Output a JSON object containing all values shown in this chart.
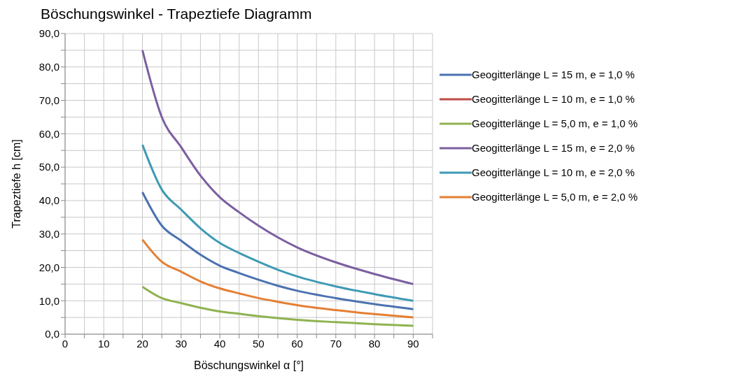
{
  "chart_data": {
    "type": "line",
    "title": "Böschungswinkel - Trapeztiefe Diagramm",
    "xlabel": "Böschungswinkel α [°]",
    "ylabel": "Trapeztiefe h [cm]",
    "x": [
      20,
      25,
      30,
      35,
      40,
      45,
      50,
      55,
      60,
      70,
      80,
      90
    ],
    "series": [
      {
        "name": "Geogitterlänge L = 15 m, e = 1,0 %",
        "color": "#4a72b0",
        "values": [
          42.5,
          32.5,
          28,
          23.8,
          20.5,
          18.3,
          16.3,
          14.5,
          13,
          10.8,
          9,
          7.5
        ]
      },
      {
        "name": "Geogitterlänge L = 10 m, e = 1,0 %",
        "color": "#be4b48",
        "values": [
          null,
          null,
          null,
          null,
          null,
          null,
          null,
          null,
          null,
          null,
          null,
          null
        ]
      },
      {
        "name": "Geogitterlänge L = 5,0 m, e = 1,0 %",
        "color": "#8fb24f",
        "values": [
          14.2,
          10.8,
          9.3,
          7.9,
          6.8,
          6.1,
          5.4,
          4.8,
          4.3,
          3.6,
          3,
          2.5
        ]
      },
      {
        "name": "Geogitterlänge L = 15 m, e = 2,0 %",
        "color": "#7b5fa0",
        "values": [
          85,
          65,
          56,
          47.5,
          41,
          36.5,
          32.5,
          29,
          26,
          21.5,
          18,
          15
        ]
      },
      {
        "name": "Geogitterlänge L = 10 m, e = 2,0 %",
        "color": "#3e9ab5",
        "values": [
          56.7,
          43.3,
          37.3,
          31.7,
          27.3,
          24.3,
          21.7,
          19.3,
          17.3,
          14.3,
          12,
          10
        ]
      },
      {
        "name": "Geogitterlänge L = 5,0 m, e = 2,0 %",
        "color": "#e47f33",
        "values": [
          28.3,
          21.7,
          18.7,
          15.8,
          13.7,
          12.2,
          10.8,
          9.7,
          8.7,
          7.2,
          6,
          5
        ]
      }
    ],
    "xlim": [
      0,
      95
    ],
    "xticks": [
      0,
      {
        "value": 5,
        "label": null
      },
      10,
      {
        "value": 15,
        "label": null
      },
      20,
      {
        "value": 25,
        "label": null
      },
      30,
      {
        "value": 35,
        "label": null
      },
      40,
      {
        "value": 45,
        "label": null
      },
      50,
      {
        "value": 55,
        "label": null
      },
      60,
      {
        "value": 65,
        "label": null
      },
      70,
      {
        "value": 75,
        "label": null
      },
      80,
      {
        "value": 85,
        "label": null
      },
      90,
      {
        "value": 95,
        "label": null
      }
    ],
    "ylim": [
      0,
      90
    ],
    "yticks": [
      {
        "value": 0,
        "label": "0,0"
      },
      {
        "value": 5,
        "label": null
      },
      {
        "value": 10,
        "label": "10,0"
      },
      {
        "value": 15,
        "label": null
      },
      {
        "value": 20,
        "label": "20,0"
      },
      {
        "value": 25,
        "label": null
      },
      {
        "value": 30,
        "label": "30,0"
      },
      {
        "value": 35,
        "label": null
      },
      {
        "value": 40,
        "label": "40,0"
      },
      {
        "value": 45,
        "label": null
      },
      {
        "value": 50,
        "label": "50,0"
      },
      {
        "value": 55,
        "label": null
      },
      {
        "value": 60,
        "label": "60,0"
      },
      {
        "value": 65,
        "label": null
      },
      {
        "value": 70,
        "label": "70,0"
      },
      {
        "value": 75,
        "label": null
      },
      {
        "value": 80,
        "label": "80,0"
      },
      {
        "value": 85,
        "label": null
      },
      {
        "value": 90,
        "label": "90,0"
      }
    ],
    "grid": true,
    "legend": "right",
    "marker": "none",
    "line_style": "solid"
  }
}
